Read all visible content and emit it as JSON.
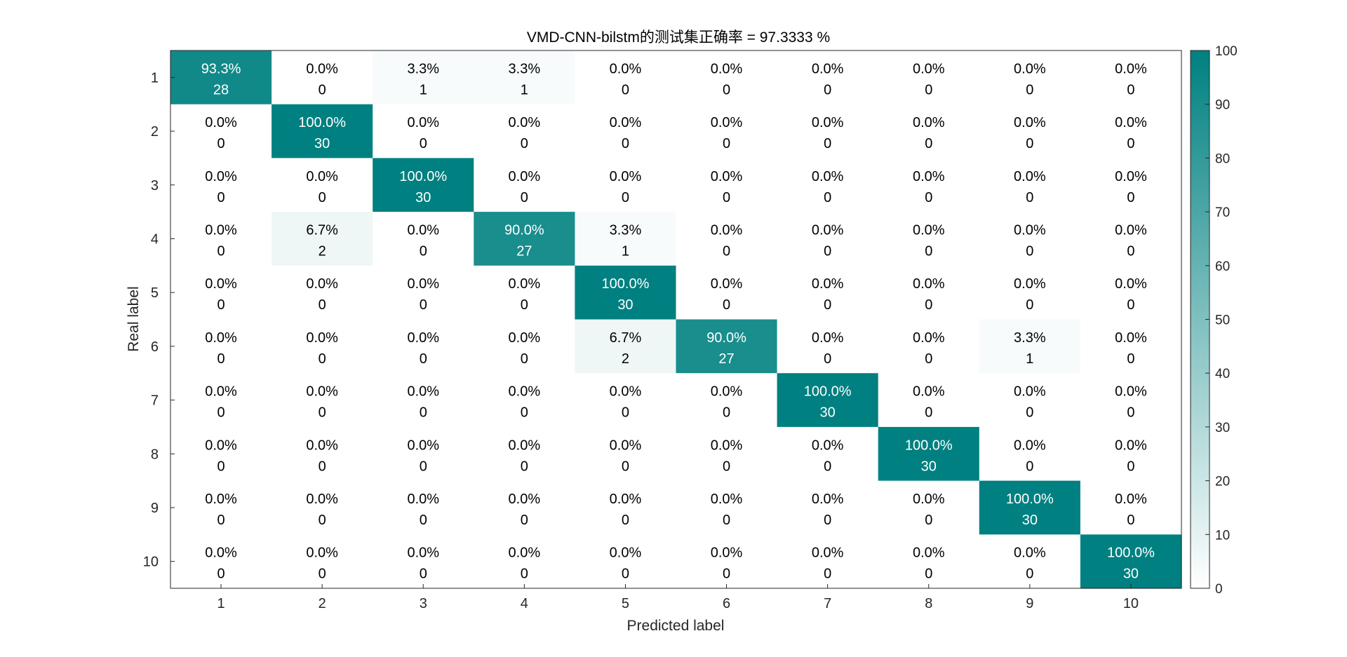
{
  "chart_data": {
    "type": "heatmap",
    "title": "VMD-CNN-bilstm的测试集正确率 = 97.3333 %",
    "xlabel": "Predicted label",
    "ylabel": "Real label",
    "x_categories": [
      "1",
      "2",
      "3",
      "4",
      "5",
      "6",
      "7",
      "8",
      "9",
      "10"
    ],
    "y_categories": [
      "1",
      "2",
      "3",
      "4",
      "5",
      "6",
      "7",
      "8",
      "9",
      "10"
    ],
    "counts": [
      [
        28,
        0,
        1,
        1,
        0,
        0,
        0,
        0,
        0,
        0
      ],
      [
        0,
        30,
        0,
        0,
        0,
        0,
        0,
        0,
        0,
        0
      ],
      [
        0,
        0,
        30,
        0,
        0,
        0,
        0,
        0,
        0,
        0
      ],
      [
        0,
        2,
        0,
        27,
        1,
        0,
        0,
        0,
        0,
        0
      ],
      [
        0,
        0,
        0,
        0,
        30,
        0,
        0,
        0,
        0,
        0
      ],
      [
        0,
        0,
        0,
        0,
        2,
        27,
        0,
        0,
        1,
        0
      ],
      [
        0,
        0,
        0,
        0,
        0,
        0,
        30,
        0,
        0,
        0
      ],
      [
        0,
        0,
        0,
        0,
        0,
        0,
        0,
        30,
        0,
        0
      ],
      [
        0,
        0,
        0,
        0,
        0,
        0,
        0,
        0,
        30,
        0
      ],
      [
        0,
        0,
        0,
        0,
        0,
        0,
        0,
        0,
        0,
        30
      ]
    ],
    "percentages": [
      [
        "93.3%",
        "0.0%",
        "3.3%",
        "3.3%",
        "0.0%",
        "0.0%",
        "0.0%",
        "0.0%",
        "0.0%",
        "0.0%"
      ],
      [
        "0.0%",
        "100.0%",
        "0.0%",
        "0.0%",
        "0.0%",
        "0.0%",
        "0.0%",
        "0.0%",
        "0.0%",
        "0.0%"
      ],
      [
        "0.0%",
        "0.0%",
        "100.0%",
        "0.0%",
        "0.0%",
        "0.0%",
        "0.0%",
        "0.0%",
        "0.0%",
        "0.0%"
      ],
      [
        "0.0%",
        "6.7%",
        "0.0%",
        "90.0%",
        "3.3%",
        "0.0%",
        "0.0%",
        "0.0%",
        "0.0%",
        "0.0%"
      ],
      [
        "0.0%",
        "0.0%",
        "0.0%",
        "0.0%",
        "100.0%",
        "0.0%",
        "0.0%",
        "0.0%",
        "0.0%",
        "0.0%"
      ],
      [
        "0.0%",
        "0.0%",
        "0.0%",
        "0.0%",
        "6.7%",
        "90.0%",
        "0.0%",
        "0.0%",
        "3.3%",
        "0.0%"
      ],
      [
        "0.0%",
        "0.0%",
        "0.0%",
        "0.0%",
        "0.0%",
        "0.0%",
        "100.0%",
        "0.0%",
        "0.0%",
        "0.0%"
      ],
      [
        "0.0%",
        "0.0%",
        "0.0%",
        "0.0%",
        "0.0%",
        "0.0%",
        "0.0%",
        "100.0%",
        "0.0%",
        "0.0%"
      ],
      [
        "0.0%",
        "0.0%",
        "0.0%",
        "0.0%",
        "0.0%",
        "0.0%",
        "0.0%",
        "0.0%",
        "100.0%",
        "0.0%"
      ],
      [
        "0.0%",
        "0.0%",
        "0.0%",
        "0.0%",
        "0.0%",
        "0.0%",
        "0.0%",
        "0.0%",
        "0.0%",
        "100.0%"
      ]
    ],
    "percent_values": [
      [
        93.3,
        0,
        3.3,
        3.3,
        0,
        0,
        0,
        0,
        0,
        0
      ],
      [
        0,
        100,
        0,
        0,
        0,
        0,
        0,
        0,
        0,
        0
      ],
      [
        0,
        0,
        100,
        0,
        0,
        0,
        0,
        0,
        0,
        0
      ],
      [
        0,
        6.7,
        0,
        90,
        3.3,
        0,
        0,
        0,
        0,
        0
      ],
      [
        0,
        0,
        0,
        0,
        100,
        0,
        0,
        0,
        0,
        0
      ],
      [
        0,
        0,
        0,
        0,
        6.7,
        90,
        0,
        0,
        3.3,
        0
      ],
      [
        0,
        0,
        0,
        0,
        0,
        0,
        100,
        0,
        0,
        0
      ],
      [
        0,
        0,
        0,
        0,
        0,
        0,
        0,
        100,
        0,
        0
      ],
      [
        0,
        0,
        0,
        0,
        0,
        0,
        0,
        0,
        100,
        0
      ],
      [
        0,
        0,
        0,
        0,
        0,
        0,
        0,
        0,
        0,
        100
      ]
    ],
    "colorbar": {
      "range": [
        0,
        100
      ],
      "ticks": [
        "0",
        "10",
        "20",
        "30",
        "40",
        "50",
        "60",
        "70",
        "80",
        "90",
        "100"
      ],
      "color_low": "#ffffff",
      "color_high": "#008080"
    },
    "text_color_dark": "#000000",
    "text_color_light": "#ffffff"
  }
}
